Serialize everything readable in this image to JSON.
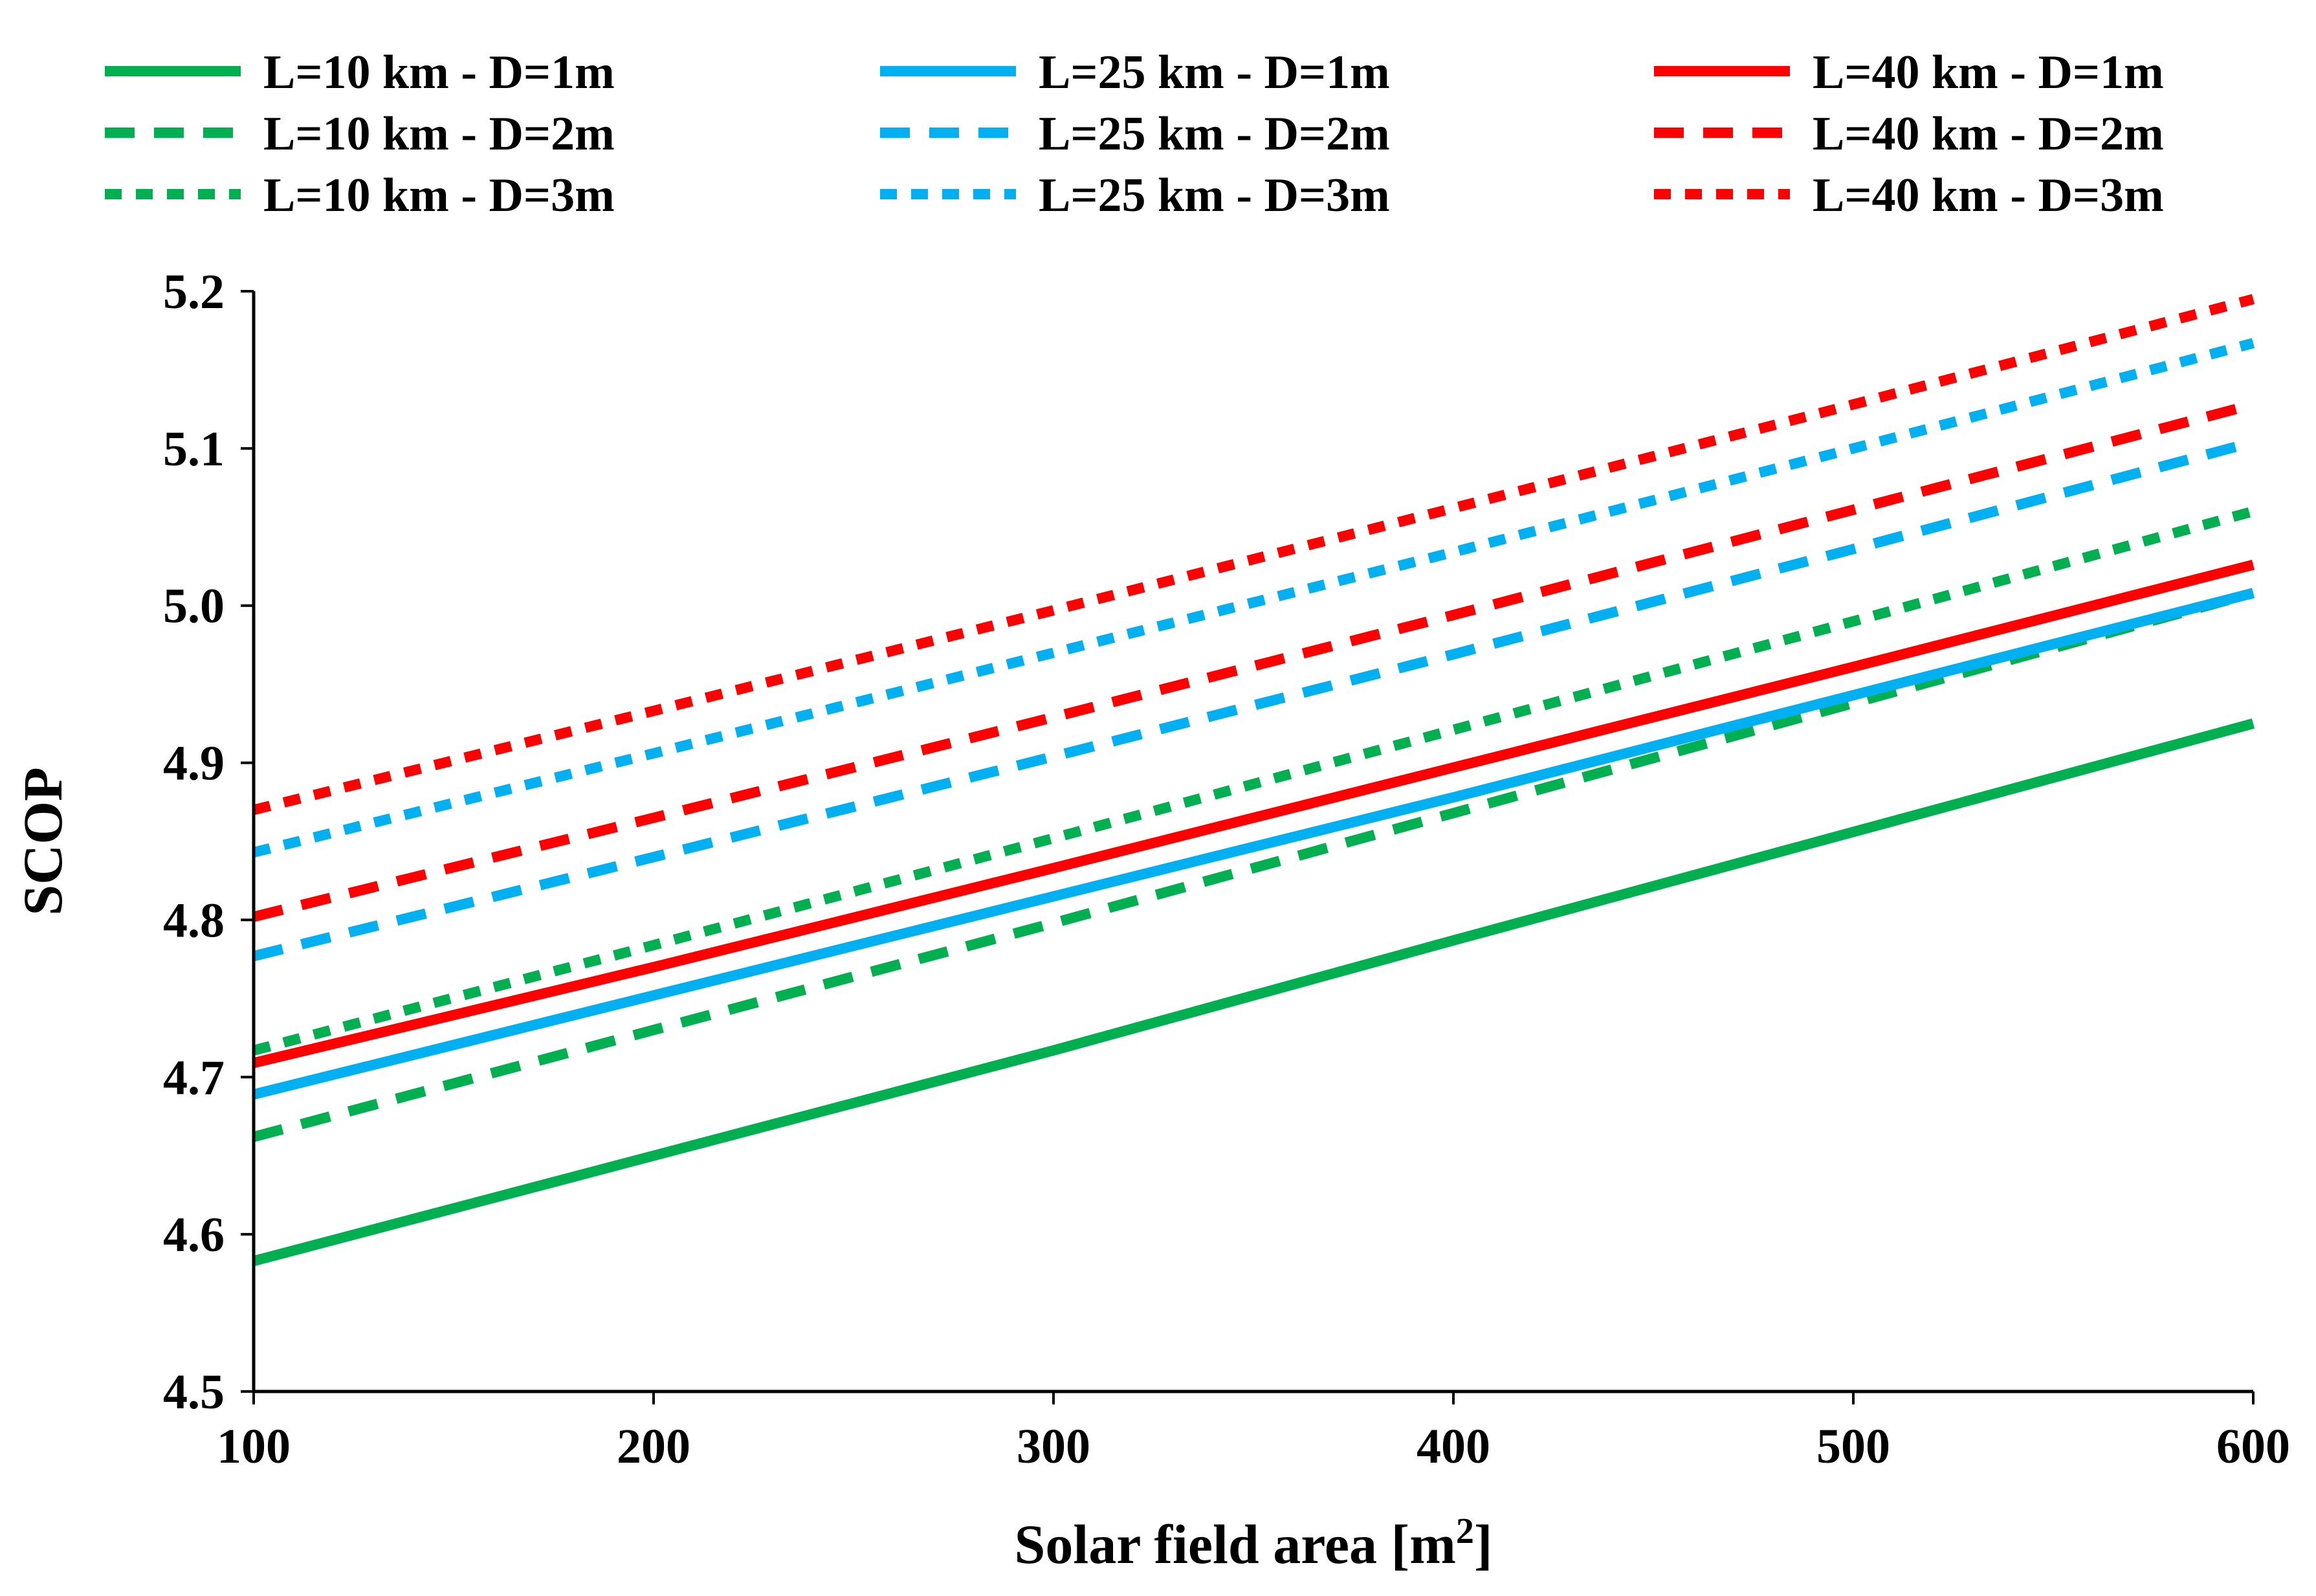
{
  "chart_data": {
    "type": "line",
    "title": "",
    "xlabel": "Solar field area [m",
    "xlabel_superscript": "2",
    "xlabel_suffix": "]",
    "ylabel": "SCOP",
    "xlim": [
      100,
      600
    ],
    "ylim": [
      4.5,
      5.2
    ],
    "x_ticks": [
      100,
      200,
      300,
      400,
      500,
      600
    ],
    "x_tick_labels": [
      "100",
      "200",
      "300",
      "400",
      "500",
      "600"
    ],
    "y_ticks": [
      4.5,
      4.6,
      4.7,
      4.8,
      4.9,
      5.0,
      5.1,
      5.2
    ],
    "y_tick_labels": [
      "4.5",
      "4.6",
      "4.7",
      "4.8",
      "4.9",
      "5.0",
      "5.1",
      "5.2"
    ],
    "grid": false,
    "legend_position": "top",
    "x": [
      100,
      200,
      300,
      400,
      500,
      600
    ],
    "series": [
      {
        "name": "L=10 km - D=1m",
        "color": "#00b050",
        "dash": "solid",
        "values": [
          4.583,
          4.65,
          4.717,
          4.787,
          4.856,
          4.925
        ]
      },
      {
        "name": "L=10 km - D=2m",
        "color": "#00b050",
        "dash": "long-dash",
        "values": [
          4.662,
          4.73,
          4.798,
          4.868,
          4.938,
          5.008
        ]
      },
      {
        "name": "L=10 km - D=3m",
        "color": "#00b050",
        "dash": "short-dash",
        "values": [
          4.717,
          4.784,
          4.852,
          4.921,
          4.99,
          5.06
        ]
      },
      {
        "name": "L=25 km - D=1m",
        "color": "#00b0f0",
        "dash": "solid",
        "values": [
          4.689,
          4.752,
          4.815,
          4.878,
          4.943,
          5.008
        ]
      },
      {
        "name": "L=25 km - D=2m",
        "color": "#00b0f0",
        "dash": "long-dash",
        "values": [
          4.777,
          4.84,
          4.904,
          4.969,
          5.036,
          5.104
        ]
      },
      {
        "name": "L=25 km - D=3m",
        "color": "#00b0f0",
        "dash": "short-dash",
        "values": [
          4.843,
          4.906,
          4.97,
          5.034,
          5.1,
          5.167
        ]
      },
      {
        "name": "L=40 km - D=1m",
        "color": "#ff0000",
        "dash": "solid",
        "values": [
          4.709,
          4.77,
          4.833,
          4.897,
          4.961,
          5.026
        ]
      },
      {
        "name": "L=40 km - D=2m",
        "color": "#ff0000",
        "dash": "long-dash",
        "values": [
          4.802,
          4.865,
          4.929,
          4.994,
          5.061,
          5.128
        ]
      },
      {
        "name": "L=40 km - D=3m",
        "color": "#ff0000",
        "dash": "short-dash",
        "values": [
          4.87,
          4.933,
          4.997,
          5.062,
          5.128,
          5.195
        ]
      }
    ]
  }
}
